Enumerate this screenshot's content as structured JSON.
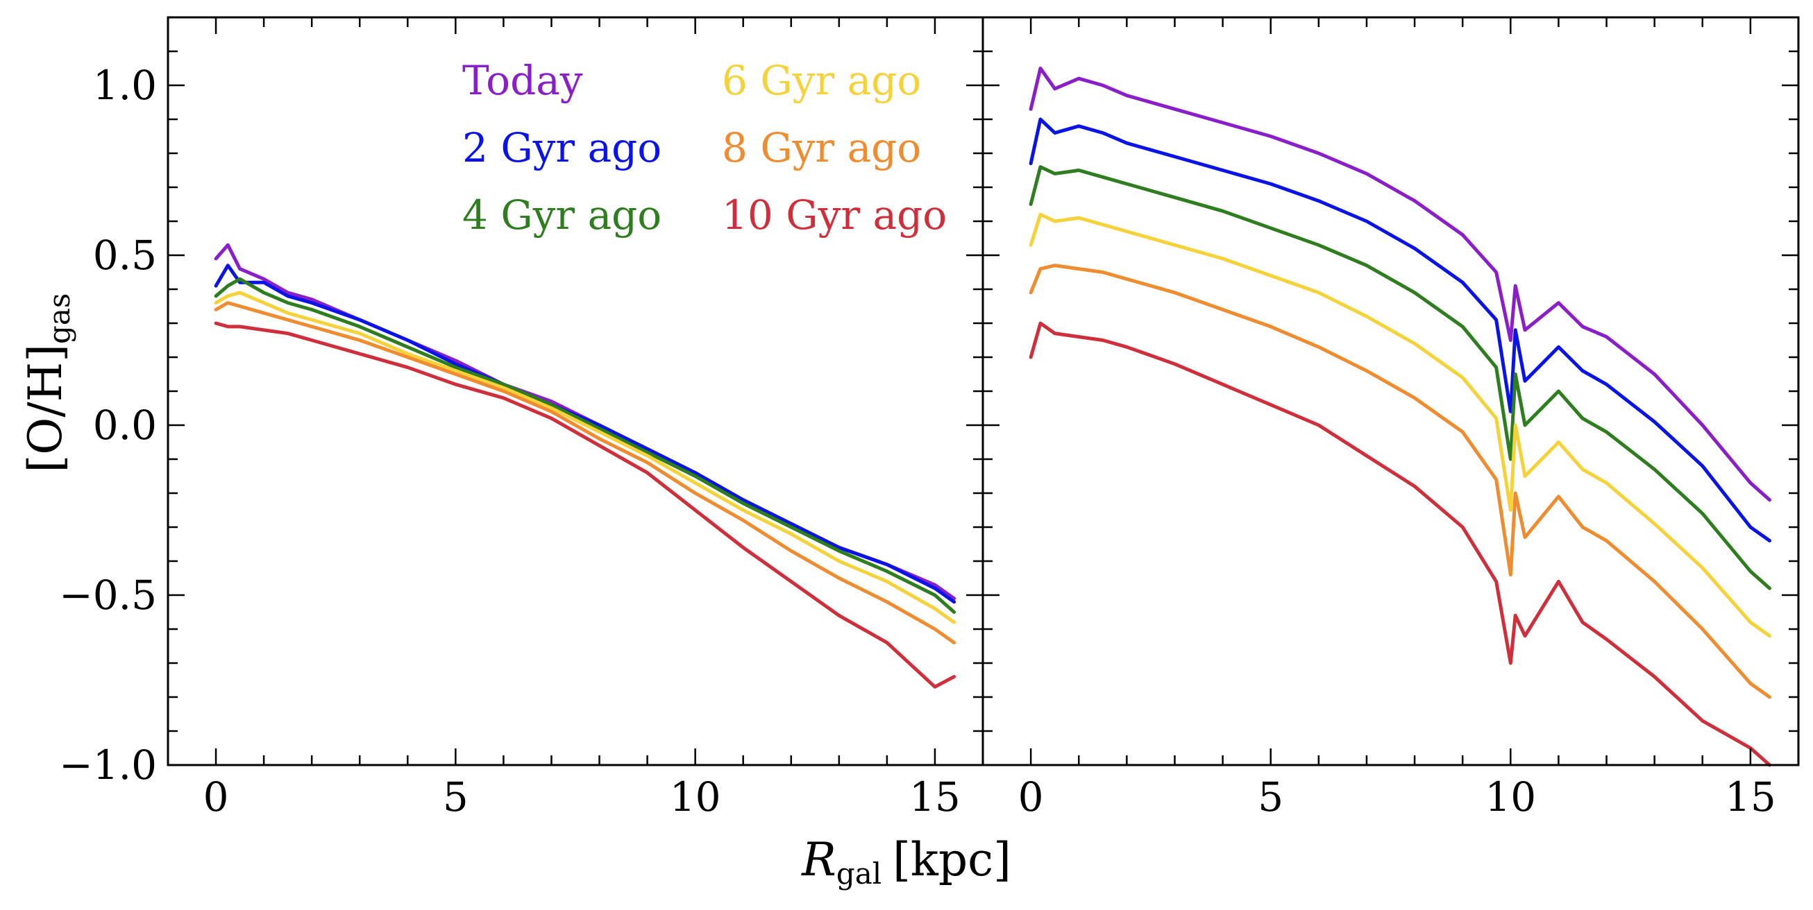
{
  "chart_data": {
    "type": "line",
    "xlabel": "R",
    "xlabel_sub": "gal",
    "xlabel_unit": "[kpc]",
    "ylabel": "[O/H]",
    "ylabel_sub": "gas",
    "xlim": [
      -1,
      16
    ],
    "ylim": [
      -1.0,
      1.2
    ],
    "x_ticks": [
      0,
      5,
      10,
      15
    ],
    "x_tick_labels": [
      "0",
      "5",
      "10",
      "15"
    ],
    "y_ticks": [
      -1.0,
      -0.5,
      0.0,
      0.5,
      1.0
    ],
    "y_tick_labels": [
      "−1.0",
      "−0.5",
      "0.0",
      "0.5",
      "1.0"
    ],
    "legend_placement": "upper-right of left panel",
    "colors": {
      "Today": "#8a1fc9",
      "2 Gyr ago": "#0a14e6",
      "4 Gyr ago": "#2e7d1e",
      "6 Gyr ago": "#f6d23a",
      "8 Gyr ago": "#ef8c30",
      "10 Gyr ago": "#cf2f3a"
    },
    "panels": [
      {
        "name": "left",
        "series": [
          {
            "name": "Today",
            "x": [
              0,
              0.25,
              0.5,
              1,
              1.5,
              2,
              3,
              4,
              5,
              6,
              7,
              8,
              9,
              10,
              11,
              12,
              13,
              14,
              15,
              15.4
            ],
            "y": [
              0.49,
              0.53,
              0.46,
              0.43,
              0.39,
              0.37,
              0.31,
              0.25,
              0.19,
              0.12,
              0.07,
              0.0,
              -0.07,
              -0.14,
              -0.22,
              -0.29,
              -0.36,
              -0.41,
              -0.47,
              -0.51
            ]
          },
          {
            "name": "2 Gyr ago",
            "x": [
              0,
              0.25,
              0.5,
              1,
              1.5,
              2,
              3,
              4,
              5,
              6,
              7,
              8,
              9,
              10,
              11,
              12,
              13,
              14,
              15,
              15.4
            ],
            "y": [
              0.41,
              0.47,
              0.42,
              0.42,
              0.38,
              0.36,
              0.31,
              0.25,
              0.18,
              0.12,
              0.06,
              0.0,
              -0.07,
              -0.14,
              -0.22,
              -0.29,
              -0.36,
              -0.41,
              -0.48,
              -0.52
            ]
          },
          {
            "name": "4 Gyr ago",
            "x": [
              0,
              0.25,
              0.5,
              1,
              1.5,
              2,
              3,
              4,
              5,
              6,
              7,
              8,
              9,
              10,
              11,
              12,
              13,
              14,
              15,
              15.4
            ],
            "y": [
              0.38,
              0.41,
              0.43,
              0.39,
              0.36,
              0.34,
              0.29,
              0.23,
              0.17,
              0.12,
              0.06,
              -0.01,
              -0.08,
              -0.15,
              -0.23,
              -0.3,
              -0.37,
              -0.43,
              -0.5,
              -0.55
            ]
          },
          {
            "name": "6 Gyr ago",
            "x": [
              0,
              0.25,
              0.5,
              1,
              1.5,
              2,
              3,
              4,
              5,
              6,
              7,
              8,
              9,
              10,
              11,
              12,
              13,
              14,
              15,
              15.4
            ],
            "y": [
              0.36,
              0.38,
              0.39,
              0.36,
              0.33,
              0.31,
              0.27,
              0.21,
              0.16,
              0.11,
              0.05,
              -0.02,
              -0.09,
              -0.17,
              -0.25,
              -0.32,
              -0.4,
              -0.46,
              -0.54,
              -0.58
            ]
          },
          {
            "name": "8 Gyr ago",
            "x": [
              0,
              0.25,
              0.5,
              1,
              1.5,
              2,
              3,
              4,
              5,
              6,
              7,
              8,
              9,
              10,
              11,
              12,
              13,
              14,
              15,
              15.4
            ],
            "y": [
              0.34,
              0.36,
              0.35,
              0.33,
              0.31,
              0.29,
              0.25,
              0.2,
              0.15,
              0.1,
              0.04,
              -0.04,
              -0.11,
              -0.2,
              -0.28,
              -0.37,
              -0.45,
              -0.52,
              -0.6,
              -0.64
            ]
          },
          {
            "name": "10 Gyr ago",
            "x": [
              0,
              0.25,
              0.5,
              1,
              1.5,
              2,
              3,
              4,
              5,
              6,
              7,
              8,
              9,
              10,
              11,
              12,
              13,
              14,
              15,
              15.4
            ],
            "y": [
              0.3,
              0.29,
              0.29,
              0.28,
              0.27,
              0.25,
              0.21,
              0.17,
              0.12,
              0.08,
              0.02,
              -0.06,
              -0.14,
              -0.25,
              -0.36,
              -0.46,
              -0.56,
              -0.64,
              -0.77,
              -0.74
            ]
          }
        ]
      },
      {
        "name": "right",
        "series": [
          {
            "name": "Today",
            "x": [
              0,
              0.2,
              0.5,
              1,
              1.5,
              2,
              3,
              4,
              5,
              6,
              7,
              8,
              9,
              9.7,
              10,
              10.1,
              10.3,
              11,
              11.5,
              12,
              13,
              14,
              15,
              15.4
            ],
            "y": [
              0.93,
              1.05,
              0.99,
              1.02,
              1.0,
              0.97,
              0.93,
              0.89,
              0.85,
              0.8,
              0.74,
              0.66,
              0.56,
              0.45,
              0.25,
              0.41,
              0.28,
              0.36,
              0.29,
              0.26,
              0.15,
              0.0,
              -0.17,
              -0.22
            ]
          },
          {
            "name": "2 Gyr ago",
            "x": [
              0,
              0.2,
              0.5,
              1,
              1.5,
              2,
              3,
              4,
              5,
              6,
              7,
              8,
              9,
              9.7,
              10,
              10.1,
              10.3,
              11,
              11.5,
              12,
              13,
              14,
              15,
              15.4
            ],
            "y": [
              0.77,
              0.9,
              0.86,
              0.88,
              0.86,
              0.83,
              0.79,
              0.75,
              0.71,
              0.66,
              0.6,
              0.52,
              0.42,
              0.31,
              0.04,
              0.28,
              0.13,
              0.23,
              0.16,
              0.12,
              0.01,
              -0.12,
              -0.3,
              -0.34
            ]
          },
          {
            "name": "4 Gyr ago",
            "x": [
              0,
              0.2,
              0.5,
              1,
              1.5,
              2,
              3,
              4,
              5,
              6,
              7,
              8,
              9,
              9.7,
              10,
              10.1,
              10.3,
              11,
              11.5,
              12,
              13,
              14,
              15,
              15.4
            ],
            "y": [
              0.65,
              0.76,
              0.74,
              0.75,
              0.73,
              0.71,
              0.67,
              0.63,
              0.58,
              0.53,
              0.47,
              0.39,
              0.29,
              0.17,
              -0.1,
              0.15,
              0.0,
              0.1,
              0.02,
              -0.02,
              -0.13,
              -0.26,
              -0.43,
              -0.48
            ]
          },
          {
            "name": "6 Gyr ago",
            "x": [
              0,
              0.2,
              0.5,
              1,
              1.5,
              2,
              3,
              4,
              5,
              6,
              7,
              8,
              9,
              9.7,
              10,
              10.1,
              10.3,
              11,
              11.5,
              12,
              13,
              14,
              15,
              15.4
            ],
            "y": [
              0.53,
              0.62,
              0.6,
              0.61,
              0.59,
              0.57,
              0.53,
              0.49,
              0.44,
              0.39,
              0.32,
              0.24,
              0.14,
              0.02,
              -0.25,
              0.0,
              -0.15,
              -0.05,
              -0.13,
              -0.17,
              -0.29,
              -0.42,
              -0.58,
              -0.62
            ]
          },
          {
            "name": "8 Gyr ago",
            "x": [
              0,
              0.2,
              0.5,
              1,
              1.5,
              2,
              3,
              4,
              5,
              6,
              7,
              8,
              9,
              9.7,
              10,
              10.1,
              10.3,
              11,
              11.5,
              12,
              13,
              14,
              15,
              15.4
            ],
            "y": [
              0.39,
              0.46,
              0.47,
              0.46,
              0.45,
              0.43,
              0.39,
              0.34,
              0.29,
              0.23,
              0.16,
              0.08,
              -0.02,
              -0.16,
              -0.44,
              -0.2,
              -0.33,
              -0.21,
              -0.3,
              -0.34,
              -0.46,
              -0.6,
              -0.76,
              -0.8
            ]
          },
          {
            "name": "10 Gyr ago",
            "x": [
              0,
              0.2,
              0.5,
              1,
              1.5,
              2,
              3,
              4,
              5,
              6,
              7,
              8,
              9,
              9.7,
              10,
              10.1,
              10.3,
              11,
              11.5,
              12,
              13,
              14,
              15,
              15.4
            ],
            "y": [
              0.2,
              0.3,
              0.27,
              0.26,
              0.25,
              0.23,
              0.18,
              0.12,
              0.06,
              0.0,
              -0.09,
              -0.18,
              -0.3,
              -0.46,
              -0.7,
              -0.56,
              -0.62,
              -0.46,
              -0.58,
              -0.63,
              -0.74,
              -0.87,
              -0.95,
              -1.0
            ]
          }
        ]
      }
    ],
    "legend": [
      {
        "label": "Today",
        "column": 0,
        "row": 0
      },
      {
        "label": "2 Gyr ago",
        "column": 0,
        "row": 1
      },
      {
        "label": "4 Gyr ago",
        "column": 0,
        "row": 2
      },
      {
        "label": "6 Gyr ago",
        "column": 1,
        "row": 0
      },
      {
        "label": "8 Gyr ago",
        "column": 1,
        "row": 1
      },
      {
        "label": "10 Gyr ago",
        "column": 1,
        "row": 2
      }
    ]
  }
}
